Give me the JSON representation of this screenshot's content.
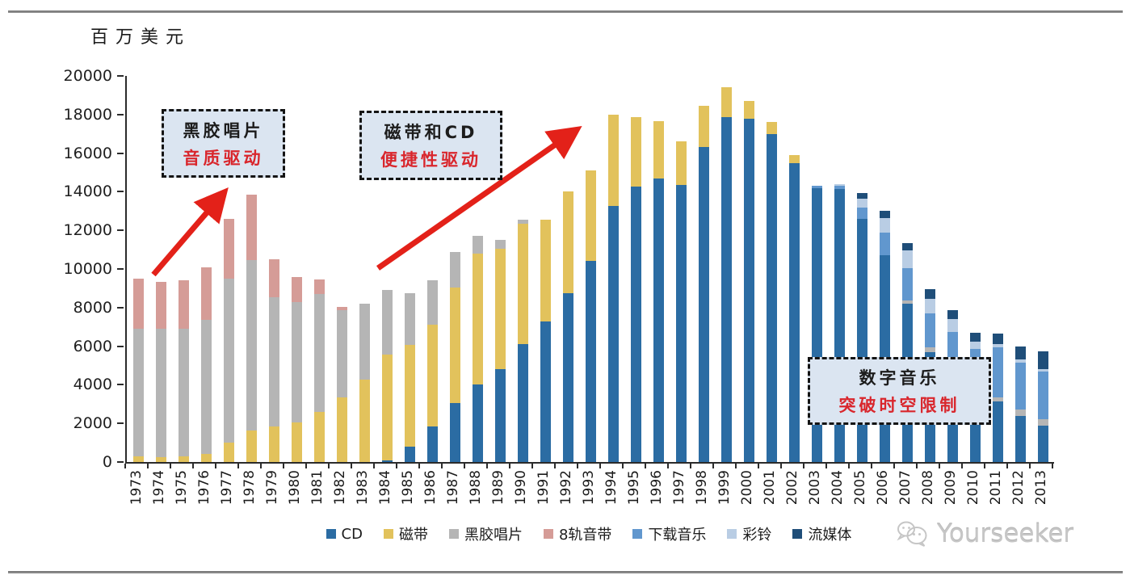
{
  "page": {
    "unit_label": "百万美元",
    "watermark_text": "Yourseeker"
  },
  "annotations": [
    {
      "line1": "黑胶唱片",
      "line2": "音质驱动"
    },
    {
      "line1": "磁带和CD",
      "line2": "便捷性驱动"
    },
    {
      "line1": "数字音乐",
      "line2": "突破时空限制"
    }
  ],
  "colors": {
    "annotation_box_bg": "#dbe5f1",
    "annotation_accent_red": "#d9262c",
    "arrow_red": "#e32119",
    "axis": "#2b2b2b",
    "watermark_gray": "#c6c6c6"
  },
  "chart_data": {
    "type": "bar",
    "stacked": true,
    "title": "",
    "ylabel": "百万美元",
    "xlabel": "",
    "ylim": [
      0,
      20000
    ],
    "y_ticks": [
      0,
      2000,
      4000,
      6000,
      8000,
      10000,
      12000,
      14000,
      16000,
      18000,
      20000
    ],
    "grid": false,
    "legend_position": "bottom",
    "categories": [
      1973,
      1974,
      1975,
      1976,
      1977,
      1978,
      1979,
      1980,
      1981,
      1982,
      1983,
      1984,
      1985,
      1986,
      1987,
      1988,
      1989,
      1990,
      1991,
      1992,
      1993,
      1994,
      1995,
      1996,
      1997,
      1998,
      1999,
      2000,
      2001,
      2002,
      2003,
      2004,
      2005,
      2006,
      2007,
      2008,
      2009,
      2010,
      2011,
      2012,
      2013
    ],
    "series": [
      {
        "name": "CD",
        "color": "#2b6ca3",
        "values": [
          0,
          0,
          0,
          0,
          0,
          0,
          0,
          0,
          0,
          0,
          0,
          100,
          800,
          1850,
          3050,
          4000,
          4800,
          6100,
          7300,
          8750,
          10400,
          13250,
          14250,
          14700,
          14350,
          16300,
          17850,
          17800,
          17000,
          15500,
          14200,
          14150,
          12600,
          10700,
          8200,
          5700,
          4800,
          4000,
          3150,
          2400,
          1900
        ]
      },
      {
        "name": "磁带",
        "color": "#e2c25c",
        "values": [
          300,
          250,
          300,
          400,
          1000,
          1650,
          1850,
          2050,
          2600,
          3350,
          4250,
          5450,
          5250,
          5250,
          6000,
          6800,
          6250,
          6250,
          5250,
          5250,
          4700,
          4750,
          3600,
          2950,
          2250,
          2150,
          1550,
          900,
          600,
          400,
          0,
          0,
          0,
          0,
          0,
          0,
          0,
          0,
          0,
          0,
          0
        ]
      },
      {
        "name": "黑胶唱片",
        "color": "#b5b5b5",
        "values": [
          6600,
          6650,
          6600,
          6950,
          8500,
          8800,
          6700,
          6250,
          6100,
          4500,
          3950,
          3350,
          2700,
          2300,
          1850,
          900,
          450,
          200,
          0,
          0,
          0,
          0,
          0,
          0,
          0,
          0,
          0,
          0,
          0,
          0,
          0,
          0,
          0,
          0,
          150,
          250,
          150,
          150,
          200,
          300,
          300
        ]
      },
      {
        "name": "8轨音带",
        "color": "#d59c97",
        "values": [
          2600,
          2450,
          2500,
          2750,
          3100,
          3400,
          1950,
          1300,
          750,
          200,
          0,
          0,
          0,
          0,
          0,
          0,
          0,
          0,
          0,
          0,
          0,
          0,
          0,
          0,
          0,
          0,
          0,
          0,
          0,
          0,
          0,
          0,
          0,
          0,
          0,
          0,
          0,
          0,
          0,
          0,
          0
        ]
      },
      {
        "name": "下载音乐",
        "color": "#6197ce",
        "values": [
          0,
          0,
          0,
          0,
          0,
          0,
          0,
          0,
          0,
          0,
          0,
          0,
          0,
          0,
          0,
          0,
          0,
          0,
          0,
          0,
          0,
          0,
          0,
          0,
          0,
          0,
          0,
          0,
          0,
          0,
          100,
          150,
          600,
          1200,
          1700,
          1750,
          1800,
          1700,
          2600,
          2450,
          2500
        ]
      },
      {
        "name": "彩铃",
        "color": "#b9cde4",
        "values": [
          0,
          0,
          0,
          0,
          0,
          0,
          0,
          0,
          0,
          0,
          0,
          0,
          0,
          0,
          0,
          0,
          0,
          0,
          0,
          0,
          0,
          0,
          0,
          0,
          0,
          0,
          0,
          0,
          0,
          0,
          0,
          100,
          450,
          750,
          900,
          750,
          650,
          400,
          150,
          150,
          120
        ]
      },
      {
        "name": "流媒体",
        "color": "#1f4e79",
        "values": [
          0,
          0,
          0,
          0,
          0,
          0,
          0,
          0,
          0,
          0,
          0,
          0,
          0,
          0,
          0,
          0,
          0,
          0,
          0,
          0,
          0,
          0,
          0,
          0,
          0,
          0,
          0,
          0,
          0,
          0,
          0,
          0,
          300,
          350,
          400,
          500,
          480,
          460,
          570,
          700,
          930
        ]
      }
    ]
  }
}
